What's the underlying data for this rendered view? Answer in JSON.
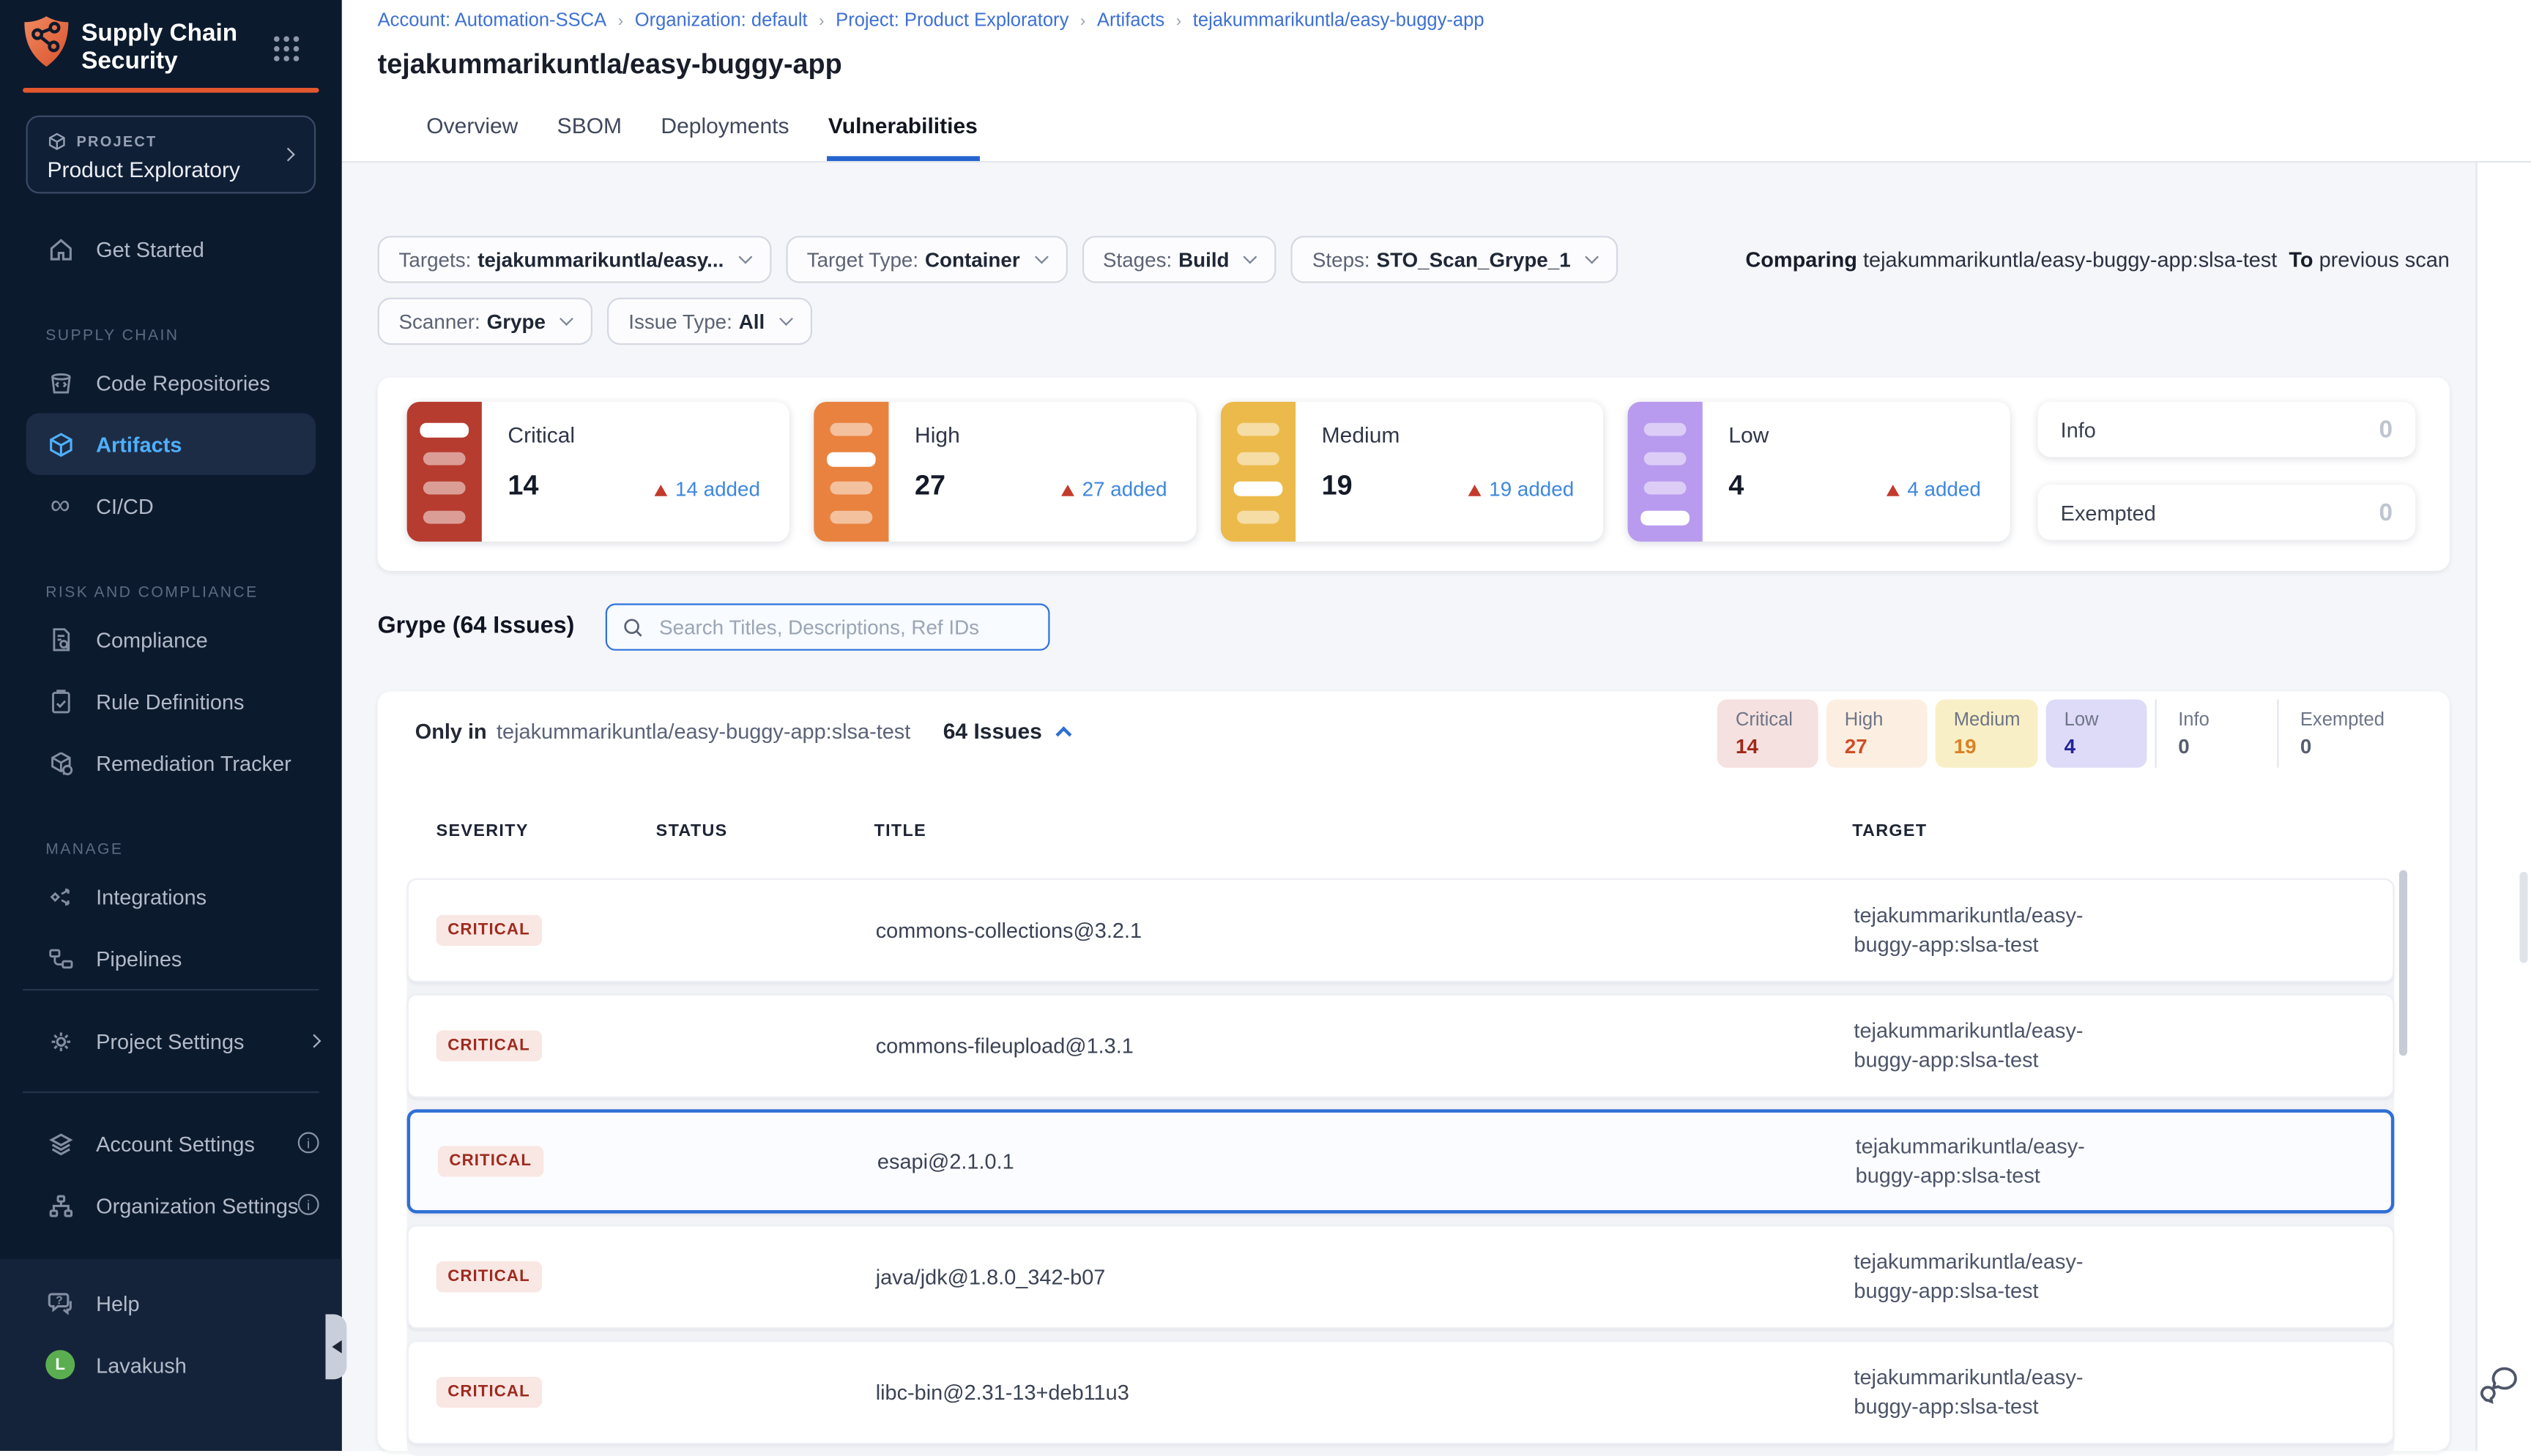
{
  "sidebar": {
    "logo_title": "Supply Chain Security",
    "project_label": "PROJECT",
    "project_name": "Product Exploratory",
    "nav": [
      {
        "label": "Get Started",
        "icon": "home"
      },
      {
        "section": "SUPPLY CHAIN"
      },
      {
        "label": "Code Repositories",
        "icon": "repo"
      },
      {
        "label": "Artifacts",
        "icon": "cube",
        "active": true
      },
      {
        "label": "CI/CD",
        "icon": "infinity"
      },
      {
        "section": "RISK AND COMPLIANCE"
      },
      {
        "label": "Compliance",
        "icon": "doc"
      },
      {
        "label": "Rule Definitions",
        "icon": "clip"
      },
      {
        "label": "Remediation Tracker",
        "icon": "boxw"
      },
      {
        "section": "MANAGE"
      },
      {
        "label": "Integrations",
        "icon": "integ"
      },
      {
        "label": "Pipelines",
        "icon": "pipe"
      }
    ],
    "project_settings": "Project Settings",
    "account_settings": "Account Settings",
    "organization_settings": "Organization Settings",
    "help": "Help",
    "user_name": "Lavakush",
    "user_initial": "L",
    "accent_color": "#e2572e",
    "active_item_color": "#4fb0fc"
  },
  "breadcrumb": [
    "Account: Automation-SSCA",
    "Organization: default",
    "Project: Product Exploratory",
    "Artifacts",
    "tejakummarikuntla/easy-buggy-app"
  ],
  "page_title": "tejakummarikuntla/easy-buggy-app",
  "tabs": [
    {
      "label": "Overview",
      "active": false
    },
    {
      "label": "SBOM",
      "active": false
    },
    {
      "label": "Deployments",
      "active": false
    },
    {
      "label": "Vulnerabilities",
      "active": true
    }
  ],
  "filters": [
    {
      "label": "Targets:",
      "value": "tejakummarikuntla/easy..."
    },
    {
      "label": "Target Type:",
      "value": "Container"
    },
    {
      "label": "Stages:",
      "value": "Build"
    },
    {
      "label": "Steps:",
      "value": "STO_Scan_Grype_1"
    },
    {
      "label": "Scanner:",
      "value": "Grype"
    },
    {
      "label": "Issue Type:",
      "value": "All"
    }
  ],
  "comparing": {
    "prefix": "Comparing",
    "artifact": "tejakummarikuntla/easy-buggy-app:slsa-test",
    "to": "To",
    "suffix": "previous scan"
  },
  "severity_cards": [
    {
      "label": "Critical",
      "count": "14",
      "added": "14 added",
      "color": "#b63c2f",
      "active_dash": 0
    },
    {
      "label": "High",
      "count": "27",
      "added": "27 added",
      "color": "#e9823f",
      "active_dash": 1
    },
    {
      "label": "Medium",
      "count": "19",
      "added": "19 added",
      "color": "#ecba4b",
      "active_dash": 2
    },
    {
      "label": "Low",
      "count": "4",
      "added": "4 added",
      "color": "#b89bee",
      "active_dash": 3
    }
  ],
  "side_cards": [
    {
      "label": "Info",
      "count": "0"
    },
    {
      "label": "Exempted",
      "count": "0"
    }
  ],
  "issues_section": {
    "heading": "Grype (64 Issues)",
    "search_placeholder": "Search Titles, Descriptions, Ref IDs",
    "only_in_label": "Only in",
    "only_in_target": "tejakummarikuntla/easy-buggy-app:slsa-test",
    "issues_count": "64 Issues",
    "chips": [
      {
        "label": "Critical",
        "count": "14",
        "bg": "#f5e1df",
        "color": "#a1281b"
      },
      {
        "label": "High",
        "count": "27",
        "bg": "#fcefe2",
        "color": "#cf4e26"
      },
      {
        "label": "Medium",
        "count": "19",
        "bg": "#f9efc6",
        "color": "#db8127"
      },
      {
        "label": "Low",
        "count": "4",
        "bg": "#dddbf7",
        "color": "#23259a"
      },
      {
        "label": "Info",
        "count": "0",
        "bg": "",
        "color": "#565e6e"
      },
      {
        "label": "Exempted",
        "count": "0",
        "bg": "",
        "color": "#565e6e"
      }
    ],
    "columns": [
      "SEVERITY",
      "STATUS",
      "TITLE",
      "TARGET"
    ],
    "severity_badge": {
      "bg": "#f9e7e4",
      "color": "#9e2b1e"
    },
    "rows": [
      {
        "severity": "CRITICAL",
        "title": "commons-collections@3.2.1",
        "target": "tejakummarikuntla/easy-buggy-app:slsa-test",
        "selected": false
      },
      {
        "severity": "CRITICAL",
        "title": "commons-fileupload@1.3.1",
        "target": "tejakummarikuntla/easy-buggy-app:slsa-test",
        "selected": false
      },
      {
        "severity": "CRITICAL",
        "title": "esapi@2.1.0.1",
        "target": "tejakummarikuntla/easy-buggy-app:slsa-test",
        "selected": true
      },
      {
        "severity": "CRITICAL",
        "title": "java/jdk@1.8.0_342-b07",
        "target": "tejakummarikuntla/easy-buggy-app:slsa-test",
        "selected": false
      },
      {
        "severity": "CRITICAL",
        "title": "libc-bin@2.31-13+deb11u3",
        "target": "tejakummarikuntla/easy-buggy-app:slsa-test",
        "selected": false
      }
    ]
  }
}
